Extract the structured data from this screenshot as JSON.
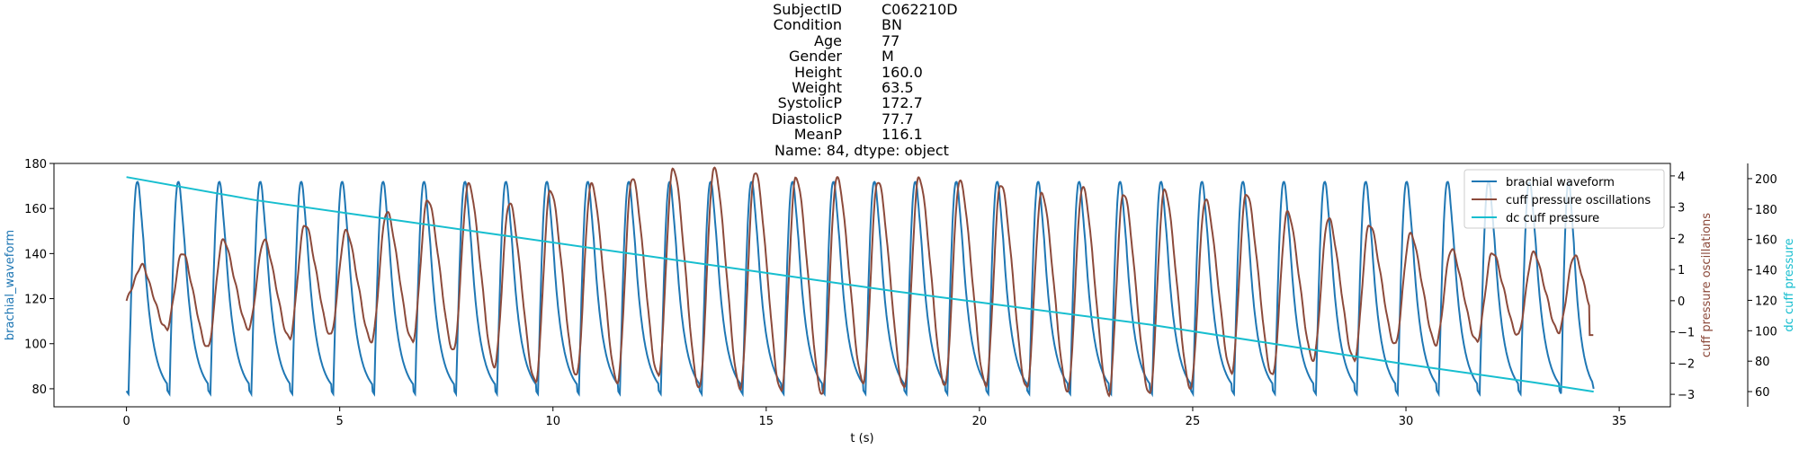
{
  "title": {
    "rows": [
      {
        "key": "SubjectID",
        "value": "C062210D"
      },
      {
        "key": "Condition",
        "value": "BN"
      },
      {
        "key": "Age",
        "value": "77"
      },
      {
        "key": "Gender",
        "value": "M"
      },
      {
        "key": "Height",
        "value": "160.0"
      },
      {
        "key": "Weight",
        "value": "63.5"
      },
      {
        "key": "SystolicP",
        "value": "172.7"
      },
      {
        "key": "DiastolicP",
        "value": "77.7"
      },
      {
        "key": "MeanP",
        "value": "116.1"
      }
    ],
    "footer": "Name: 84, dtype: object"
  },
  "chart_data": {
    "type": "line",
    "xlabel": "t (s)",
    "xlim": [
      -1.7,
      36.2
    ],
    "xticks": [
      0,
      5,
      10,
      15,
      20,
      25,
      30,
      35
    ],
    "grid": false,
    "legend_position": "top-right",
    "colors": {
      "brachial": "#1f77b4",
      "cuff_osc": "#8c4a3b",
      "dc_cuff": "#17becf"
    },
    "legend": [
      "brachial waveform",
      "cuff pressure oscillations",
      "dc cuff pressure"
    ],
    "axes": {
      "left": {
        "label": "brachial_waveform",
        "ylim": [
          72,
          180
        ],
        "ticks": [
          80,
          100,
          120,
          140,
          160,
          180
        ]
      },
      "right1": {
        "label": "cuff pressure oscillations",
        "ylim": [
          -3.4,
          4.4
        ],
        "ticks": [
          -3,
          -2,
          -1,
          0,
          1,
          2,
          3,
          4
        ]
      },
      "right2": {
        "label": "dc cuff pressure",
        "ylim": [
          50,
          210
        ],
        "ticks": [
          60,
          80,
          100,
          120,
          140,
          160,
          180,
          200
        ]
      }
    },
    "brachial_waveform": {
      "beat_times": [
        0.0,
        0.96,
        1.92,
        2.88,
        3.84,
        4.8,
        5.76,
        6.72,
        7.68,
        8.64,
        9.6,
        10.56,
        11.52,
        12.48,
        13.44,
        14.4,
        15.36,
        16.32,
        17.28,
        18.24,
        19.2,
        20.16,
        21.12,
        22.08,
        23.04,
        24.0,
        24.96,
        25.92,
        26.88,
        27.84,
        28.8,
        29.76,
        30.72,
        31.68,
        32.64,
        33.6,
        34.4
      ],
      "systolic": 172.7,
      "diastolic": 77.7,
      "start": 79,
      "end": 80
    },
    "cuff_pressure_oscillations": {
      "beat_times": [
        0.0,
        0.96,
        1.92,
        2.88,
        3.84,
        4.8,
        5.76,
        6.72,
        7.68,
        8.64,
        9.6,
        10.56,
        11.52,
        12.48,
        13.44,
        14.4,
        15.36,
        16.32,
        17.28,
        18.24,
        19.2,
        20.16,
        21.12,
        22.08,
        23.04,
        24.0,
        24.96,
        25.92,
        26.88,
        27.84,
        28.8,
        29.76,
        30.72,
        31.68,
        32.64,
        33.6
      ],
      "peaks": [
        1.1,
        1.5,
        1.9,
        1.9,
        2.4,
        2.2,
        2.8,
        3.2,
        3.7,
        3.1,
        3.5,
        3.7,
        3.9,
        4.2,
        4.2,
        4.1,
        3.9,
        3.9,
        3.8,
        3.9,
        3.8,
        3.7,
        3.4,
        3.6,
        3.4,
        3.5,
        3.2,
        3.4,
        2.8,
        2.6,
        2.4,
        2.1,
        1.6,
        1.5,
        1.5,
        1.4
      ],
      "troughs": [
        -0.9,
        -1.5,
        -0.9,
        -1.2,
        -1.1,
        -1.3,
        -1.3,
        -1.6,
        -2.1,
        -2.6,
        -2.4,
        -2.6,
        -2.4,
        -2.8,
        -2.8,
        -2.9,
        -3.0,
        -2.6,
        -2.8,
        -2.7,
        -2.7,
        -2.8,
        -2.9,
        -3.0,
        -3.0,
        -2.8,
        -2.3,
        -2.4,
        -1.9,
        -1.9,
        -1.4,
        -1.4,
        -1.3,
        -1.1,
        -1.0,
        -1.1
      ],
      "start": 0.0,
      "end": -1.1
    },
    "dc_cuff_pressure": {
      "x": [
        0,
        3,
        6,
        9,
        12,
        15,
        18,
        21,
        24,
        27,
        30,
        33,
        34.4
      ],
      "y": [
        201,
        186,
        174,
        162,
        150,
        138,
        126,
        115,
        104,
        91,
        78,
        66,
        60
      ]
    }
  }
}
